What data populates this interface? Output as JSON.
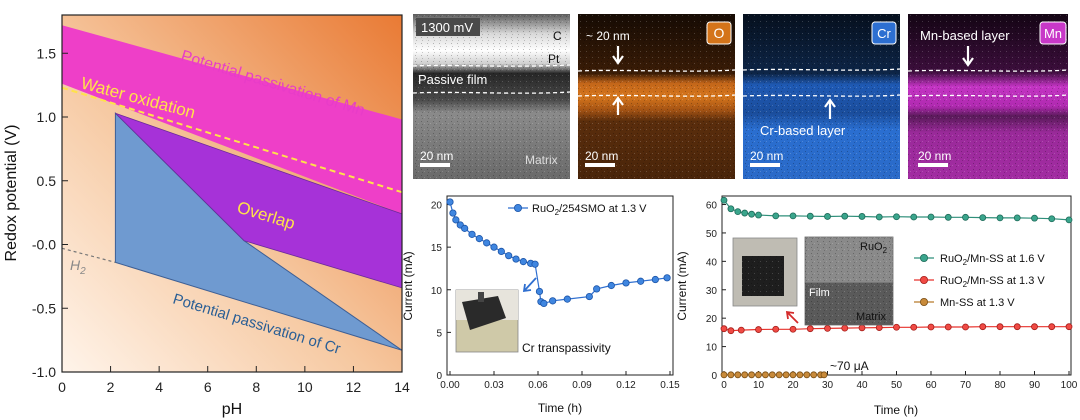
{
  "panel_a": {
    "xlabel": "pH",
    "ylabel": "Redox potential (V)",
    "labels": {
      "mn": "Potential passivation of Mn",
      "water": "Water oxidation",
      "overlap": "Overlap",
      "cr": "Potential passivation of Cr",
      "h2": "H",
      "h2_sub": "2"
    },
    "colors": {
      "mn_region": "#ee3fc8",
      "overlap_region": "#a632d8",
      "cr_region": "#6f9ad0",
      "water_line": "#ffe24a",
      "mn_text": "#e83cc8",
      "cr_text": "#2b5f95"
    }
  },
  "micro": {
    "p1": {
      "voltage": "1300 mV",
      "c": "C",
      "pt": "Pt",
      "film": "Passive film",
      "scale": "20 nm",
      "matrix": "Matrix"
    },
    "p2": {
      "thickness": "~ 20 nm",
      "element": "O",
      "scale": "20 nm",
      "color": "#d4741a"
    },
    "p3": {
      "element": "Cr",
      "note": "Cr-based layer",
      "scale": "20 nm",
      "color": "#2d6fd1"
    },
    "p4": {
      "element": "Mn",
      "note": "Mn-based layer",
      "scale": "20 nm",
      "color": "#c838c8"
    }
  },
  "chart_data": [
    {
      "type": "area",
      "title": "",
      "xlabel": "pH",
      "ylabel": "Redox potential (V)",
      "xlim": [
        0,
        14
      ],
      "ylim": [
        -1.0,
        1.8
      ],
      "xticks": [
        0,
        2,
        4,
        6,
        8,
        10,
        12,
        14
      ],
      "yticks": [
        "-1.0",
        "-0.5",
        "-0.0",
        "0.5",
        "1.0",
        "1.5"
      ],
      "regions": [
        {
          "name": "Potential passivation of Mn",
          "upper": [
            [
              0,
              1.72
            ],
            [
              14,
              0.98
            ]
          ],
          "lower": [
            [
              0,
              1.26
            ],
            [
              14,
              0.24
            ]
          ]
        },
        {
          "name": "Overlap",
          "points": [
            [
              2.2,
              1.03
            ],
            [
              7.5,
              0.03
            ],
            [
              14,
              -0.34
            ],
            [
              14,
              0.24
            ]
          ]
        },
        {
          "name": "Potential passivation of Cr",
          "points": [
            [
              2.2,
              -0.14
            ],
            [
              2.2,
              1.03
            ],
            [
              7.5,
              0.03
            ],
            [
              14,
              -0.83
            ]
          ]
        }
      ],
      "lines": [
        {
          "name": "Water oxidation",
          "points": [
            [
              0,
              1.23
            ],
            [
              14,
              0.41
            ]
          ],
          "style": "dashed"
        },
        {
          "name": "H2",
          "points": [
            [
              0,
              -0.03
            ],
            [
              2.2,
              -0.14
            ]
          ],
          "style": "dashed"
        }
      ]
    },
    {
      "type": "scatter",
      "title": "",
      "xlabel": "Time (h)",
      "ylabel": "Current (mA)",
      "xlim": [
        0,
        0.15
      ],
      "ylim": [
        0,
        21
      ],
      "xticks": [
        "0.00",
        "0.03",
        "0.06",
        "0.09",
        "0.12",
        "0.15"
      ],
      "yticks": [
        0,
        5,
        10,
        15,
        20
      ],
      "annotation": "Cr transpassivity",
      "series": [
        {
          "name": "RuO2/254SMO at 1.3 V",
          "x": [
            0.0,
            0.002,
            0.004,
            0.007,
            0.01,
            0.015,
            0.02,
            0.025,
            0.03,
            0.035,
            0.04,
            0.045,
            0.05,
            0.055,
            0.058,
            0.061,
            0.062,
            0.064,
            0.07,
            0.08,
            0.095,
            0.1,
            0.11,
            0.12,
            0.13,
            0.14,
            0.148
          ],
          "y": [
            20.3,
            19.0,
            18.2,
            17.6,
            17.2,
            16.5,
            16.0,
            15.5,
            15.0,
            14.5,
            14.0,
            13.6,
            13.3,
            13.1,
            13.0,
            9.8,
            8.6,
            8.4,
            8.7,
            8.9,
            9.2,
            10.1,
            10.5,
            10.8,
            11.0,
            11.2,
            11.4
          ]
        }
      ]
    },
    {
      "type": "scatter",
      "title": "",
      "xlabel": "Time (h)",
      "ylabel": "Current (mA)",
      "xlim": [
        0,
        100
      ],
      "ylim": [
        0,
        63
      ],
      "xticks": [
        0,
        10,
        20,
        30,
        40,
        50,
        60,
        70,
        80,
        90,
        100
      ],
      "yticks": [
        0,
        10,
        20,
        30,
        40,
        50,
        60
      ],
      "annotation": "~70 μA",
      "inset_labels": {
        "top": "RuO",
        "top_sub": "2",
        "film": "Film",
        "matrix": "Matrix"
      },
      "series": [
        {
          "name": "RuO2/Mn-SS at 1.6 V",
          "color": "#2f8f7a",
          "x": [
            0,
            2,
            4,
            6,
            8,
            10,
            15,
            20,
            25,
            30,
            35,
            40,
            45,
            50,
            55,
            60,
            65,
            70,
            75,
            80,
            85,
            90,
            95,
            100
          ],
          "y": [
            61.5,
            58.5,
            57.5,
            57.0,
            56.6,
            56.3,
            56.0,
            56.0,
            55.9,
            55.8,
            55.9,
            55.8,
            55.6,
            55.7,
            55.6,
            55.6,
            55.5,
            55.5,
            55.4,
            55.3,
            55.3,
            55.2,
            55.0,
            54.6
          ]
        },
        {
          "name": "RuO2/Mn-SS at 1.3 V",
          "color": "#e8322c",
          "x": [
            0,
            2,
            5,
            10,
            15,
            20,
            25,
            30,
            35,
            40,
            45,
            50,
            55,
            60,
            65,
            70,
            75,
            80,
            85,
            90,
            95,
            100
          ],
          "y": [
            16.3,
            15.6,
            15.8,
            16.0,
            16.1,
            16.1,
            16.3,
            16.4,
            16.5,
            16.6,
            16.7,
            16.8,
            16.8,
            16.9,
            16.9,
            16.9,
            17.0,
            17.0,
            17.0,
            17.0,
            17.0,
            17.0
          ]
        },
        {
          "name": "Mn-SS at 1.3 V",
          "color": "#b87a2a",
          "x": [
            0,
            2,
            4,
            6,
            8,
            10,
            12,
            14,
            16,
            18,
            20,
            22,
            24,
            26,
            28,
            29
          ],
          "y": [
            0.07,
            0.07,
            0.07,
            0.07,
            0.07,
            0.07,
            0.07,
            0.07,
            0.07,
            0.07,
            0.07,
            0.07,
            0.07,
            0.07,
            0.07,
            0.07
          ]
        }
      ]
    }
  ],
  "legend_b": {
    "prefix": "RuO",
    "sub": "2",
    "suffix": "/254SMO at 1.3 V"
  },
  "legend_c": [
    {
      "prefix": "RuO",
      "sub": "2",
      "suffix": "/Mn-SS at 1.6 V"
    },
    {
      "prefix": "RuO",
      "sub": "2",
      "suffix": "/Mn-SS at 1.3 V"
    },
    {
      "prefix": "Mn-SS at 1.3 V",
      "sub": "",
      "suffix": ""
    }
  ]
}
